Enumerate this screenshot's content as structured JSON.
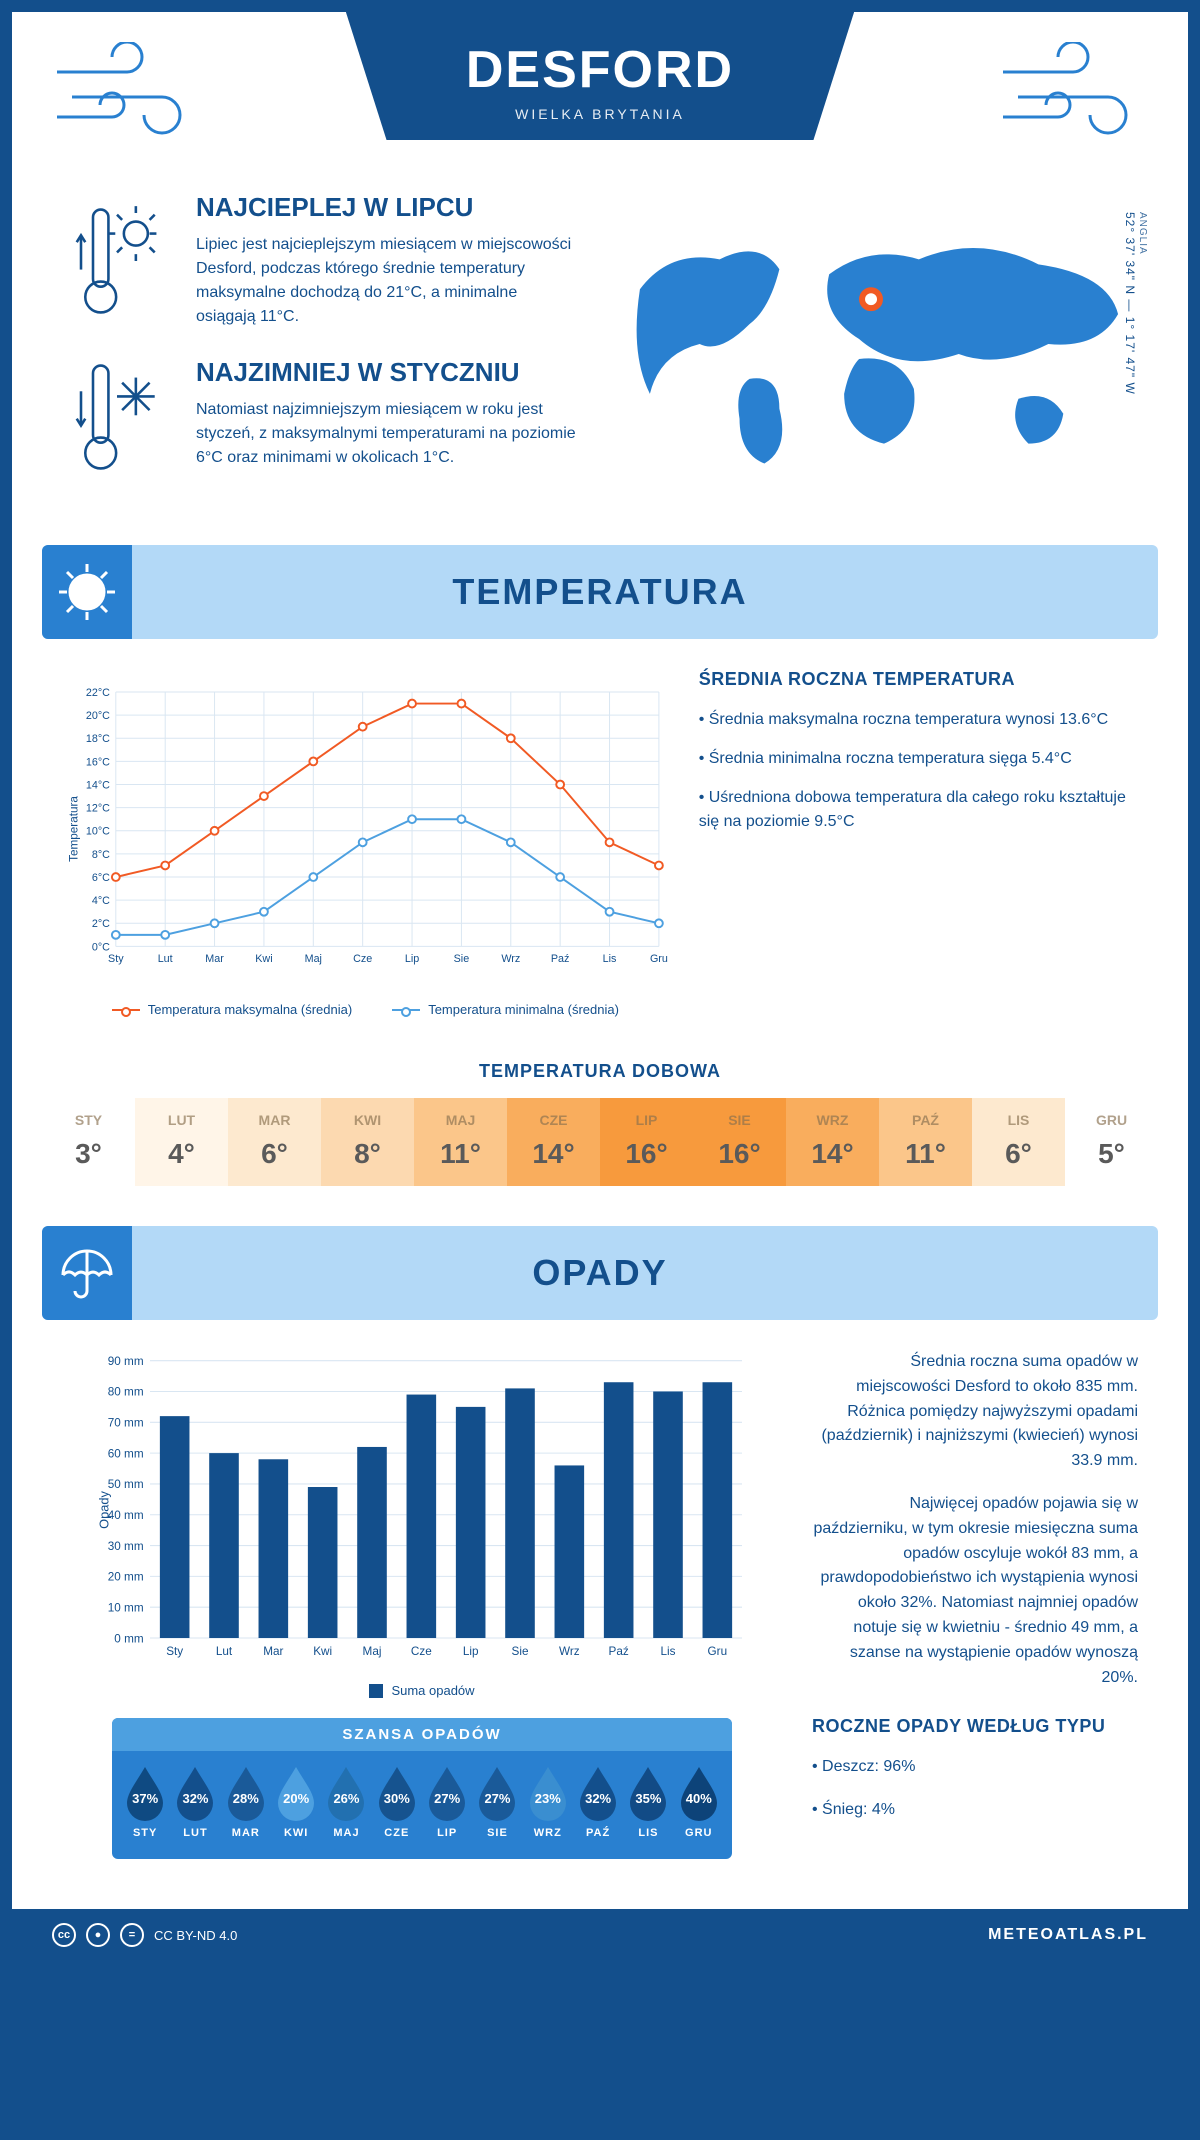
{
  "colors": {
    "primary": "#134F8C",
    "light_blue": "#b3d9f7",
    "mid_blue": "#2980d0",
    "bright_blue": "#4da0e0",
    "orange": "#f15a24",
    "line_blue": "#4da0e0",
    "grid": "#d9e6f2"
  },
  "header": {
    "title": "DESFORD",
    "subtitle": "WIELKA BRYTANIA"
  },
  "coords": {
    "region": "ANGLIA",
    "text": "52° 37' 34\" N — 1° 17' 47\" W"
  },
  "hottest": {
    "title": "NAJCIEPLEJ W LIPCU",
    "text": "Lipiec jest najcieplejszym miesiącem w miejscowości Desford, podczas którego średnie temperatury maksymalne dochodzą do 21°C, a minimalne osiągają 11°C."
  },
  "coldest": {
    "title": "NAJZIMNIEJ W STYCZNIU",
    "text": "Natomiast najzimniejszym miesiącem w roku jest styczeń, z maksymalnymi temperaturami na poziomie 6°C oraz minimami w okolicach 1°C."
  },
  "section_temp": "TEMPERATURA",
  "section_precip": "OPADY",
  "temp_chart": {
    "months": [
      "Sty",
      "Lut",
      "Mar",
      "Kwi",
      "Maj",
      "Cze",
      "Lip",
      "Sie",
      "Wrz",
      "Paź",
      "Lis",
      "Gru"
    ],
    "max": [
      6,
      7,
      10,
      13,
      16,
      19,
      21,
      21,
      18,
      14,
      9,
      7
    ],
    "min": [
      1,
      1,
      2,
      3,
      6,
      9,
      11,
      11,
      9,
      6,
      3,
      2
    ],
    "ylim": [
      0,
      22
    ],
    "ystep": 2,
    "ylabel": "Temperatura",
    "ysuffix": "°C",
    "legend_max": "Temperatura maksymalna (średnia)",
    "legend_min": "Temperatura minimalna (średnia)"
  },
  "avg_year": {
    "title": "ŚREDNIA ROCZNA TEMPERATURA",
    "b1": "• Średnia maksymalna roczna temperatura wynosi 13.6°C",
    "b2": "• Średnia minimalna roczna temperatura sięga 5.4°C",
    "b3": "• Uśredniona dobowa temperatura dla całego roku kształtuje się na poziomie 9.5°C"
  },
  "daily_strip": {
    "title": "TEMPERATURA DOBOWA",
    "months": [
      "STY",
      "LUT",
      "MAR",
      "KWI",
      "MAJ",
      "CZE",
      "LIP",
      "SIE",
      "WRZ",
      "PAŹ",
      "LIS",
      "GRU"
    ],
    "values": [
      "3°",
      "4°",
      "6°",
      "8°",
      "11°",
      "14°",
      "16°",
      "16°",
      "14°",
      "11°",
      "6°",
      "5°"
    ],
    "bg": [
      "#fff",
      "#fff5e8",
      "#fde9cf",
      "#fcd9b0",
      "#fbc68a",
      "#f9ad5d",
      "#f79a3d",
      "#f79a3d",
      "#f9ad5d",
      "#fbc68a",
      "#fde9cf",
      "#fff"
    ]
  },
  "precip_chart": {
    "months": [
      "Sty",
      "Lut",
      "Mar",
      "Kwi",
      "Maj",
      "Cze",
      "Lip",
      "Sie",
      "Wrz",
      "Paź",
      "Lis",
      "Gru"
    ],
    "values": [
      72,
      60,
      58,
      49,
      62,
      79,
      75,
      81,
      56,
      83,
      80,
      83
    ],
    "ylim": [
      0,
      90
    ],
    "ystep": 10,
    "ylabel": "Opady",
    "ysuffix": " mm",
    "legend": "Suma opadów",
    "bar_color": "#134F8C"
  },
  "precip_text": {
    "p1": "Średnia roczna suma opadów w miejscowości Desford to około 835 mm. Różnica pomiędzy najwyższymi opadami (październik) i najniższymi (kwiecień) wynosi 33.9 mm.",
    "p2": "Najwięcej opadów pojawia się w październiku, w tym okresie miesięczna suma opadów oscyluje wokół 83 mm, a prawdopodobieństwo ich wystąpienia wynosi około 32%. Natomiast najmniej opadów notuje się w kwietniu - średnio 49 mm, a szanse na wystąpienie opadów wynoszą 20%.",
    "title": "ROCZNE OPADY WEDŁUG TYPU",
    "b1": "• Deszcz: 96%",
    "b2": "• Śnieg: 4%"
  },
  "chance": {
    "title": "SZANSA OPADÓW",
    "months": [
      "STY",
      "LUT",
      "MAR",
      "KWI",
      "MAJ",
      "CZE",
      "LIP",
      "SIE",
      "WRZ",
      "PAŹ",
      "LIS",
      "GRU"
    ],
    "pct": [
      "37%",
      "32%",
      "28%",
      "20%",
      "26%",
      "30%",
      "27%",
      "27%",
      "23%",
      "32%",
      "35%",
      "40%"
    ],
    "shade": [
      "#0f4a82",
      "#134F8C",
      "#1a5a99",
      "#4da0e0",
      "#2270b0",
      "#16538f",
      "#1a5a99",
      "#1a5a99",
      "#3a8ed0",
      "#134F8C",
      "#124b86",
      "#0d4379"
    ]
  },
  "footer": {
    "license": "CC BY-ND 4.0",
    "brand": "METEOATLAS.PL"
  }
}
